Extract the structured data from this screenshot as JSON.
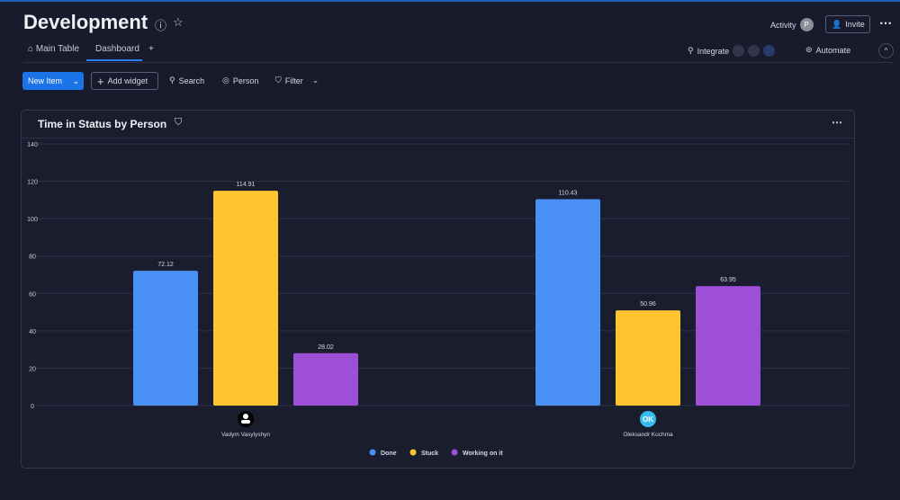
{
  "header": {
    "title": "Development",
    "activity": "Activity",
    "activity_avatar": "P",
    "invite": "Invite",
    "more": "⋯"
  },
  "tabs": [
    {
      "label": "Main Table"
    },
    {
      "label": "Dashboard"
    },
    {
      "label": "+"
    }
  ],
  "integrations": {
    "integrate": "Integrate",
    "automate": "Automate"
  },
  "toolbar": {
    "new_item": "New Item",
    "add_widget": "Add widget",
    "search": "Search",
    "person": "Person",
    "filter": "Filter"
  },
  "widget": {
    "title": "Time in Status by Person",
    "more": "⋯"
  },
  "people": [
    {
      "name": "Vadym Vasylyshyn",
      "initials": ""
    },
    {
      "name": "Oleksandr Kuchma",
      "initials": "OK"
    }
  ],
  "chart_data": {
    "type": "bar",
    "title": "Time in Status by Person",
    "categories": [
      "Vadym Vasylyshyn",
      "Oleksandr Kuchma"
    ],
    "series": [
      {
        "name": "Done",
        "color": "#4a90f5",
        "values": [
          72.12,
          110.43
        ]
      },
      {
        "name": "Stuck",
        "color": "#ffc42e",
        "values": [
          114.91,
          50.96
        ]
      },
      {
        "name": "Working on it",
        "color": "#9d4fd8",
        "values": [
          28.02,
          63.95
        ]
      }
    ],
    "ylim": [
      0,
      140
    ],
    "yticks": [
      0,
      20,
      40,
      60,
      80,
      100,
      120,
      140
    ],
    "grid": true,
    "legend": "bottom"
  }
}
